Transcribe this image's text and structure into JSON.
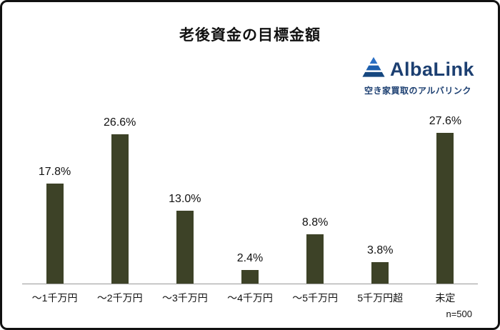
{
  "title": "老後資金の目標金額",
  "logo": {
    "name": "AlbaLink",
    "tagline": "空き家買取のアルバリンク",
    "icon": "mountain-triangle-icon",
    "brand_color": "#1c3f71",
    "icon_color": "#2a6fc4"
  },
  "footnote": "n=500",
  "chart_data": {
    "type": "bar",
    "title": "老後資金の目標金額",
    "categories": [
      "〜1千万円",
      "〜2千万円",
      "〜3千万円",
      "〜4千万円",
      "〜5千万円",
      "5千万円超",
      "未定"
    ],
    "values": [
      17.8,
      26.6,
      13.0,
      2.4,
      8.8,
      3.8,
      27.6
    ],
    "labels": [
      "17.8%",
      "26.6%",
      "13.0%",
      "2.4%",
      "8.8%",
      "3.8%",
      "27.6%"
    ],
    "xlabel": "",
    "ylabel": "",
    "ylim": [
      0,
      30
    ],
    "grid": false,
    "legend": "none",
    "bar_color": "#3d4227",
    "sample_note": "n=500"
  }
}
